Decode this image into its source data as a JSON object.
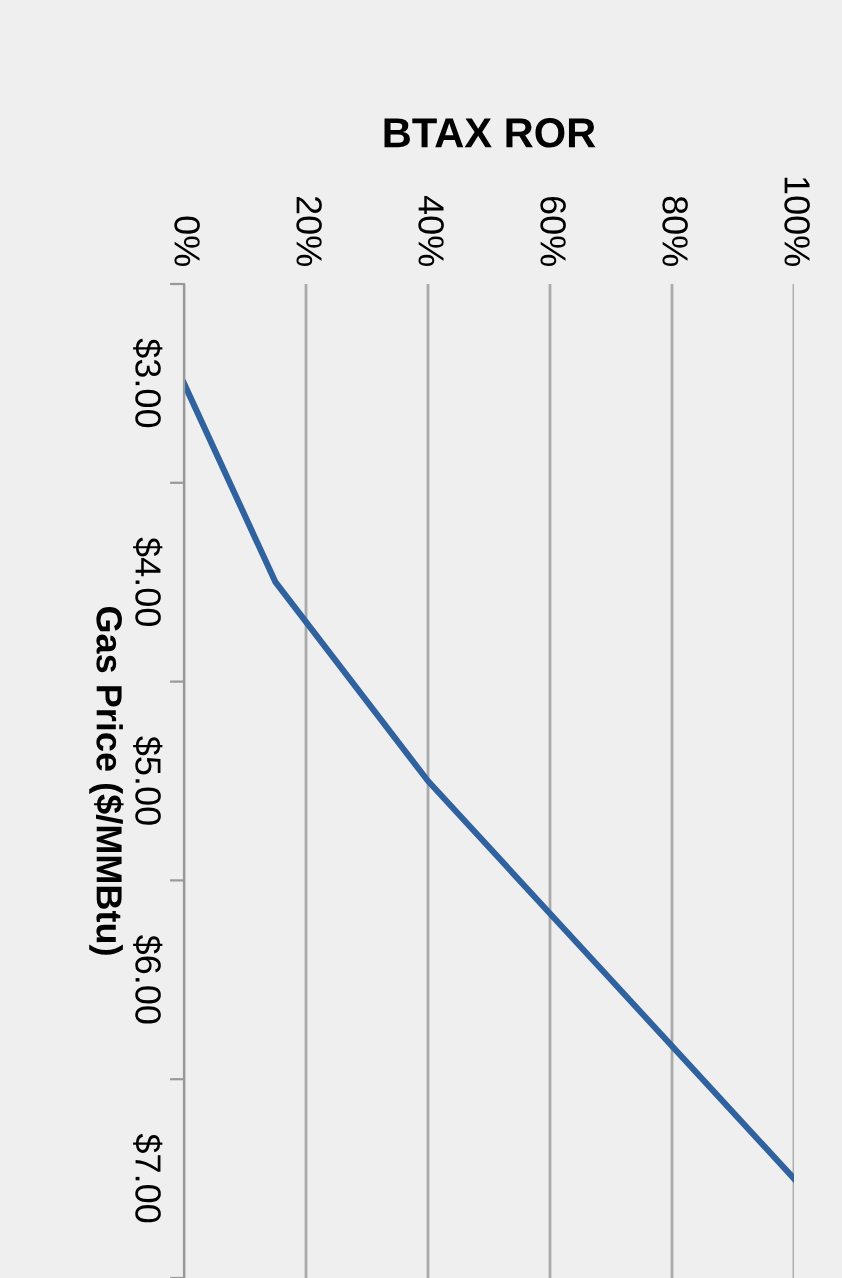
{
  "chart_data": {
    "type": "line",
    "orientation": "horizontal",
    "xlabel": "BTAX ROR",
    "ylabel": "Gas Price ($/MMBtu)",
    "categories": [
      "$3.00",
      "$4.00",
      "$5.00",
      "$6.00",
      "$7.00"
    ],
    "series": [
      {
        "color": "#3062a0",
        "values": [
          0,
          15,
          40,
          70,
          100
        ]
      }
    ],
    "xlim": [
      0,
      100
    ],
    "xticks": [
      {
        "value": 0,
        "label": "0%"
      },
      {
        "value": 20,
        "label": "20%"
      },
      {
        "value": 40,
        "label": "40%"
      },
      {
        "value": 60,
        "label": "60%"
      },
      {
        "value": 80,
        "label": "80%"
      },
      {
        "value": 100,
        "label": "100%"
      }
    ],
    "grid": "x",
    "legend": false,
    "marker": "none",
    "line_style": "solid"
  }
}
